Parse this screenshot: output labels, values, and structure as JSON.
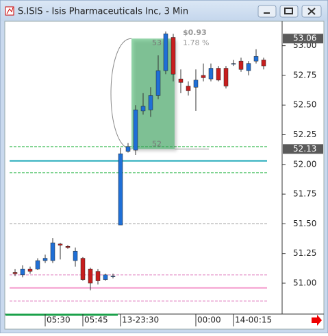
{
  "window": {
    "title": "S.ISIS - Isis Pharmaceuticals Inc, 3 Min"
  },
  "chart_data": {
    "type": "candlestick",
    "categories": [
      null,
      null,
      null,
      null,
      "05:30",
      null,
      null,
      null,
      null,
      "05:45",
      null,
      null,
      null,
      null,
      "13-23:30",
      null,
      null,
      null,
      null,
      null,
      null,
      null,
      null,
      null,
      "00:00",
      null,
      null,
      null,
      null,
      "14-00:15",
      null,
      null,
      null,
      null
    ],
    "open": [
      51.09,
      51.07,
      51.12,
      51.12,
      51.19,
      51.19,
      51.33,
      51.31,
      51.19,
      51.21,
      51.12,
      51.1,
      51.03,
      51.06,
      51.49,
      52.11,
      52.12,
      52.45,
      52.46,
      52.58,
      52.79,
      53.07,
      52.72,
      52.66,
      52.65,
      52.75,
      52.72,
      52.81,
      52.81,
      52.85,
      52.87,
      52.79,
      52.87,
      52.88
    ],
    "high": [
      51.12,
      51.15,
      51.14,
      51.21,
      51.24,
      51.38,
      51.34,
      51.32,
      51.3,
      51.22,
      51.13,
      51.12,
      51.08,
      51.08,
      52.14,
      52.18,
      52.5,
      52.6,
      52.65,
      52.92,
      53.12,
      53.1,
      52.8,
      52.7,
      52.8,
      52.85,
      52.85,
      52.83,
      52.83,
      52.88,
      52.9,
      52.87,
      52.97,
      52.9
    ],
    "low": [
      51.06,
      51.05,
      51.08,
      51.11,
      51.17,
      51.17,
      51.2,
      51.29,
      51.14,
      51.02,
      50.94,
      50.99,
      51.02,
      51.04,
      51.49,
      52.1,
      52.08,
      52.42,
      52.4,
      52.55,
      52.76,
      52.7,
      52.6,
      52.58,
      52.45,
      52.7,
      52.7,
      52.7,
      52.64,
      52.83,
      52.78,
      52.75,
      52.85,
      52.8
    ],
    "close": [
      51.08,
      51.12,
      51.1,
      51.19,
      51.21,
      51.34,
      51.32,
      51.3,
      51.27,
      51.03,
      51.0,
      51.02,
      51.07,
      51.06,
      52.09,
      52.15,
      52.46,
      52.49,
      52.58,
      52.79,
      53.1,
      52.76,
      52.69,
      52.62,
      52.71,
      52.73,
      52.81,
      52.71,
      52.66,
      52.85,
      52.8,
      52.85,
      52.91,
      52.83
    ],
    "up_color": "#1f6fd6",
    "down_color": "#c81e1e",
    "ylim": [
      50.74,
      53.2
    ],
    "yticks": [
      {
        "value": 51,
        "label": "51.00"
      },
      51.25,
      {
        "value": 51.5,
        "label": "51.50"
      },
      51.75,
      {
        "value": 52,
        "label": "52.00"
      },
      52.25,
      {
        "value": 52.5,
        "label": "52.50"
      },
      52.75,
      {
        "value": 53,
        "label": "53.00"
      }
    ],
    "price_markers": [
      53.06,
      52.13
    ],
    "levels": [
      {
        "value": 52.15,
        "color": "#2fb84a",
        "style": "dashed"
      },
      {
        "value": 51.93,
        "color": "#2fb84a",
        "style": "dashed"
      },
      {
        "value": 52.03,
        "color": "#1aa6b7",
        "style": "solid"
      },
      {
        "value": 51.5,
        "color": "#999999",
        "style": "dashed"
      },
      {
        "value": 51.07,
        "color": "#e080c0",
        "style": "dashed"
      },
      {
        "value": 50.96,
        "color": "#f5a0cf",
        "style": "solid"
      },
      {
        "value": 50.85,
        "color": "#e080c0",
        "style": "dashed"
      }
    ],
    "measure": {
      "from": 52.13,
      "to": 53.06,
      "change_label": "$0.93",
      "pct_label": "1.78 %",
      "top_label": "53",
      "bottom_label": "52"
    }
  }
}
